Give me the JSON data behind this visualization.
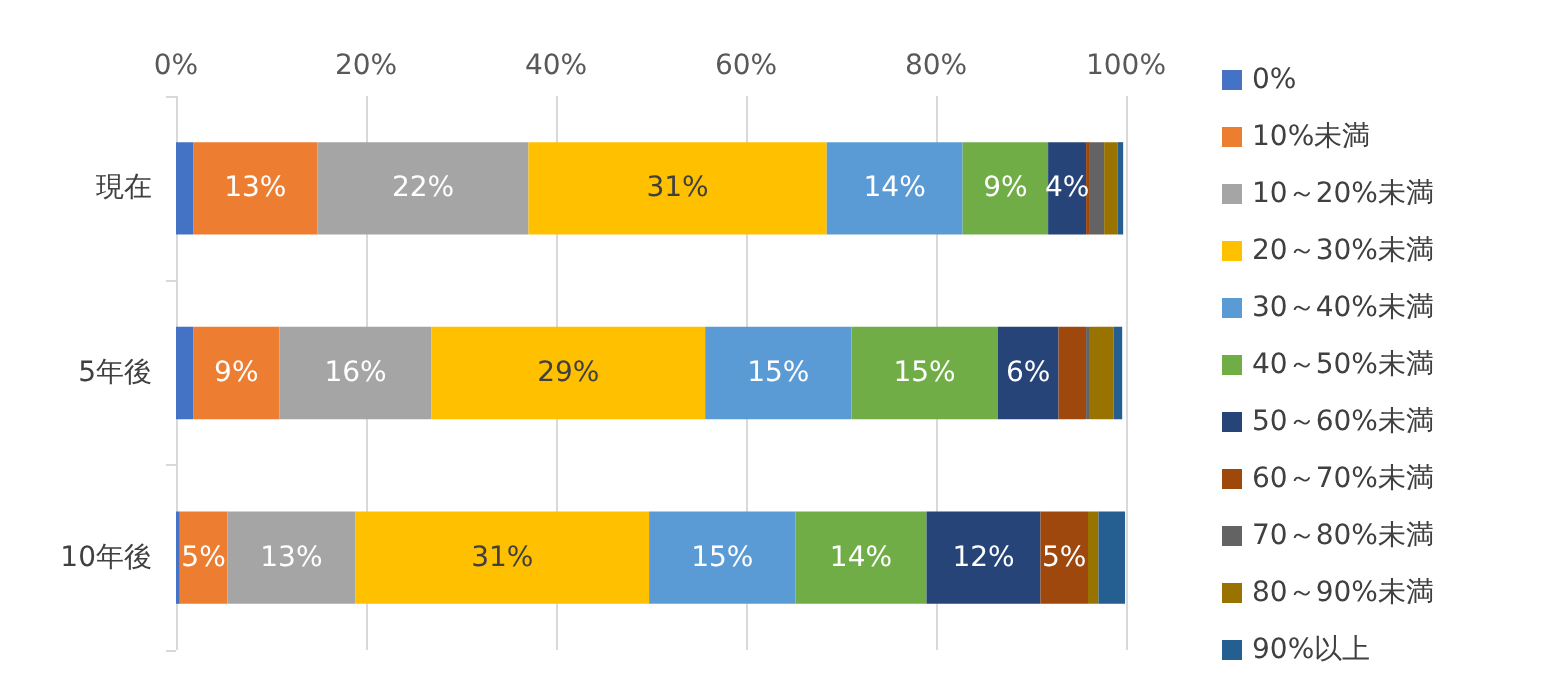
{
  "chart_data": {
    "type": "bar",
    "stacked": true,
    "orientation": "horizontal",
    "categories": [
      "現在",
      "5年後",
      "10年後"
    ],
    "xlim": [
      0,
      100
    ],
    "xticks": [
      {
        "value": 0,
        "label": "0%"
      },
      {
        "value": 20,
        "label": "20%"
      },
      {
        "value": 40,
        "label": "40%"
      },
      {
        "value": 60,
        "label": "60%"
      },
      {
        "value": 80,
        "label": "80%"
      },
      {
        "value": 100,
        "label": "100%"
      }
    ],
    "grid": "x",
    "legend": "right",
    "series": [
      {
        "name": "0%",
        "color": "#4472c4",
        "values": [
          1.8,
          1.8,
          0.4
        ],
        "value_labels": [
          null,
          null,
          null
        ]
      },
      {
        "name": "10%未満",
        "color": "#ed7d31",
        "values": [
          13.1,
          9.1,
          5.0
        ],
        "value_labels": [
          "13%",
          "9%",
          "5%"
        ]
      },
      {
        "name": "10～20%未満",
        "color": "#a5a5a5",
        "values": [
          22.2,
          16.0,
          13.5
        ],
        "value_labels": [
          "22%",
          "16%",
          "13%"
        ]
      },
      {
        "name": "20～30%未満",
        "color": "#ffc000",
        "values": [
          31.4,
          28.8,
          30.9
        ],
        "value_labels": [
          "31%",
          "29%",
          "31%"
        ]
      },
      {
        "name": "30～40%未満",
        "color": "#5b9bd5",
        "values": [
          14.3,
          15.4,
          15.4
        ],
        "value_labels": [
          "14%",
          "15%",
          "15%"
        ]
      },
      {
        "name": "40～50%未満",
        "color": "#70ad47",
        "values": [
          9.0,
          15.4,
          13.8
        ],
        "value_labels": [
          "9%",
          "15%",
          "14%"
        ]
      },
      {
        "name": "50～60%未満",
        "color": "#264478",
        "values": [
          4.0,
          6.4,
          12.0
        ],
        "value_labels": [
          "4%",
          "6%",
          "12%"
        ]
      },
      {
        "name": "60～70%未満",
        "color": "#9e480e",
        "values": [
          0.4,
          2.9,
          5.0
        ],
        "value_labels": [
          null,
          null,
          "5%"
        ]
      },
      {
        "name": "70～80%未満",
        "color": "#636363",
        "values": [
          1.5,
          0.4,
          0
        ],
        "value_labels": [
          null,
          null,
          null
        ]
      },
      {
        "name": "80～90%未満",
        "color": "#997300",
        "values": [
          1.4,
          2.5,
          1.1
        ],
        "value_labels": [
          null,
          null,
          null
        ]
      },
      {
        "name": "90%以上",
        "color": "#255e91",
        "values": [
          0.6,
          0.9,
          2.8
        ],
        "value_labels": [
          null,
          null,
          null
        ]
      }
    ]
  }
}
